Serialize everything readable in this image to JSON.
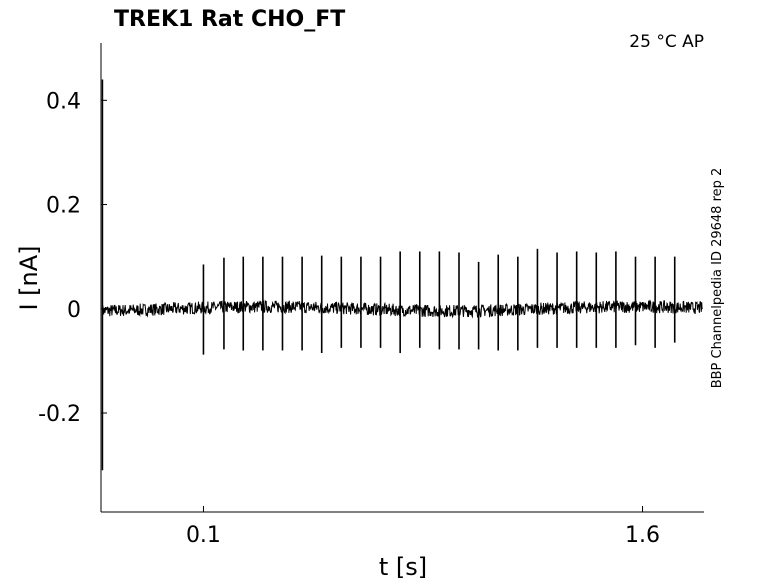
{
  "chart_data": {
    "type": "line",
    "title": "TREK1  Rat  CHO_FT",
    "annotation": "25 °C  AP",
    "side_label": "BBP Channelpedia ID 29648 rep 2",
    "xlabel": "t [s]",
    "ylabel": "I [nA]",
    "xlim": [
      -0.25,
      1.81
    ],
    "ylim": [
      -0.39,
      0.51
    ],
    "xticks": [
      0.1,
      1.6
    ],
    "xtick_labels": [
      "0.1",
      "1.6"
    ],
    "yticks": [
      0.4,
      0.2,
      0,
      -0.2
    ],
    "ytick_labels": [
      "0.4",
      "0.2",
      "0",
      "-0.2"
    ],
    "grid": false,
    "legend": "none",
    "series": [
      {
        "color": "#000000",
        "baseline_nA": 0.0,
        "noise_amplitude_nA": 0.012,
        "stimulus_start_transient": {
          "t": -0.245,
          "max": 0.44,
          "min": -0.31
        },
        "spike_times": [
          0.1,
          0.17,
          0.236,
          0.303,
          0.37,
          0.437,
          0.504,
          0.571,
          0.638,
          0.705,
          0.772,
          0.839,
          0.906,
          0.973,
          1.04,
          1.107,
          1.174,
          1.241,
          1.308,
          1.375,
          1.442,
          1.509,
          1.576,
          1.643,
          1.71
        ],
        "spike_peaks": [
          0.085,
          0.098,
          0.1,
          0.1,
          0.1,
          0.1,
          0.102,
          0.1,
          0.1,
          0.1,
          0.11,
          0.11,
          0.11,
          0.108,
          0.09,
          0.104,
          0.1,
          0.115,
          0.108,
          0.11,
          0.108,
          0.11,
          0.1,
          0.1,
          0.1
        ],
        "spike_troughs": [
          -0.088,
          -0.078,
          -0.08,
          -0.08,
          -0.08,
          -0.08,
          -0.085,
          -0.075,
          -0.075,
          -0.075,
          -0.085,
          -0.075,
          -0.078,
          -0.078,
          -0.078,
          -0.08,
          -0.08,
          -0.075,
          -0.075,
          -0.075,
          -0.075,
          -0.075,
          -0.07,
          -0.075,
          -0.065
        ]
      }
    ]
  }
}
